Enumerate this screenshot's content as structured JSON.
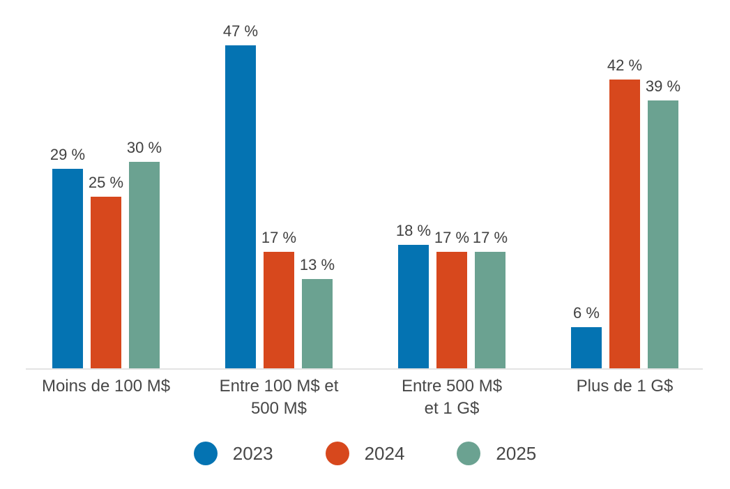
{
  "chart_data": {
    "type": "bar",
    "title": "",
    "xlabel": "",
    "ylabel": "",
    "ylim": [
      0,
      50
    ],
    "grid": false,
    "legend_position": "bottom",
    "value_suffix": " %",
    "axis_line_color": "#e3e3e3",
    "label_color": "#404040",
    "category_color": "#474747",
    "background_color": "#ffffff",
    "categories": [
      "Moins de 100 M$",
      "Entre 100 M$ et\n500 M$",
      "Entre 500 M$\net 1 G$",
      "Plus de 1 G$"
    ],
    "series": [
      {
        "name": "2023",
        "color": "#0473b2",
        "values": [
          29,
          47,
          18,
          6
        ],
        "labels": [
          "29 %",
          "47 %",
          "18 %",
          "6 %"
        ]
      },
      {
        "name": "2024",
        "color": "#d7481d",
        "values": [
          25,
          17,
          17,
          42
        ],
        "labels": [
          "25 %",
          "17 %",
          "17 %",
          "42 %"
        ]
      },
      {
        "name": "2025",
        "color": "#6ba291",
        "values": [
          30,
          13,
          17,
          39
        ],
        "labels": [
          "30 %",
          "13 %",
          "17 %",
          "39 %"
        ]
      }
    ]
  }
}
